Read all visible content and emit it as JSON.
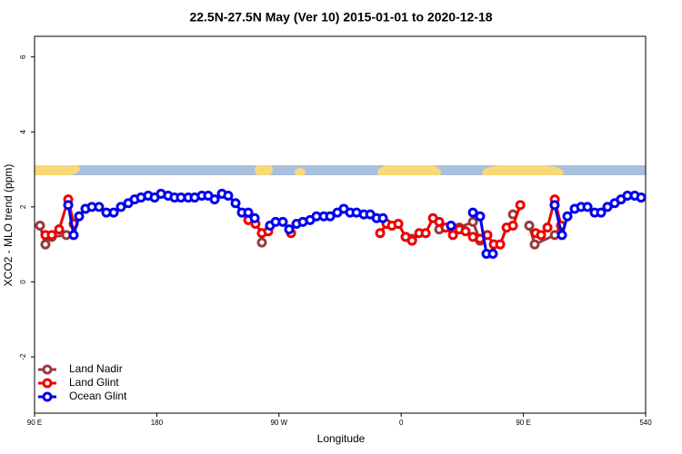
{
  "chart_data": {
    "type": "line",
    "title": "22.5N-27.5N May (Ver 10)   2015-01-01 to 2020-12-18",
    "x_label": "Longitude",
    "y_label": "XCO2 - MLO trend (ppm)",
    "xlim": [
      90,
      540
    ],
    "ylim": [
      -3.5,
      6.55
    ],
    "xticks": [
      {
        "value": 90,
        "label": "90 E"
      },
      180,
      {
        "value": 270,
        "label": "90 W"
      },
      {
        "value": 360,
        "label": "0"
      },
      {
        "value": 450,
        "label": "90 E"
      },
      540
    ],
    "yticks": [
      -2,
      0,
      2,
      4,
      6
    ],
    "legend": "bottom-left",
    "series": [
      {
        "name": "Land Nadir",
        "color": "#983b3b",
        "x": [
          94,
          98,
          102.7,
          113.4,
          null,
          257.4,
          null,
          363.3,
          368,
          null,
          388,
          402.8,
          412.8,
          418.1,
          null,
          442.3,
          null,
          454.3,
          458.3,
          473.1,
          477.7
        ],
        "values": [
          1.5,
          1.0,
          1.2,
          1.25,
          null,
          1.05,
          null,
          1.2,
          1.15,
          null,
          1.4,
          1.45,
          1.6,
          1.1,
          null,
          1.8,
          null,
          1.5,
          1.0,
          1.25,
          1.5
        ]
      },
      {
        "name": "Land Glint",
        "color": "#ee0000",
        "x": [
          98,
          102.7,
          108.1,
          114.8,
          118.8,
          null,
          247.4,
          252.7,
          257.4,
          262.1,
          null,
          278.9,
          null,
          344.5,
          349.2,
          353.2,
          357.9,
          363.3,
          368,
          373.3,
          378,
          383.4,
          388,
          392.7,
          398.1,
          402.8,
          407.4,
          412.8,
          418.1,
          423.5,
          428.2,
          432.9,
          437.6,
          442.3,
          447.7,
          null,
          459,
          463,
          467.7,
          473.1,
          477.7
        ],
        "values": [
          1.25,
          1.25,
          1.4,
          2.2,
          1.55,
          null,
          1.65,
          1.55,
          1.3,
          1.35,
          null,
          1.3,
          null,
          1.3,
          1.55,
          1.5,
          1.55,
          1.2,
          1.1,
          1.3,
          1.3,
          1.7,
          1.6,
          1.45,
          1.25,
          1.4,
          1.35,
          1.2,
          1.15,
          1.25,
          1.0,
          1.0,
          1.45,
          1.5,
          2.05,
          null,
          1.3,
          1.25,
          1.45,
          2.2,
          1.5
        ]
      },
      {
        "name": "Ocean Glint",
        "color": "#0000ee",
        "x": [
          114.8,
          118.8,
          122.8,
          127.5,
          132.2,
          137.5,
          142.9,
          148.3,
          153.6,
          159,
          163.7,
          168.4,
          173.7,
          178.4,
          183.1,
          188.4,
          193.1,
          197.8,
          203.2,
          207.9,
          213.2,
          217.9,
          222.6,
          228,
          232.6,
          238,
          242.7,
          247.4,
          252.1,
          null,
          263.4,
          267.5,
          272.8,
          277.5,
          282.9,
          287.6,
          292.9,
          297.6,
          303,
          307.7,
          313,
          317.7,
          322.4,
          327.1,
          332.5,
          337.2,
          341.9,
          346.5,
          null,
          396.7,
          null,
          412.8,
          418.1,
          422.8,
          427.5,
          null,
          473,
          478.4,
          482.4,
          487.8,
          492.5,
          497.2,
          502.5,
          507.2,
          511.9,
          517.2,
          521.9,
          526.6,
          532,
          536.7
        ],
        "values": [
          2.05,
          1.25,
          1.75,
          1.95,
          2.0,
          2.0,
          1.85,
          1.85,
          2.0,
          2.1,
          2.2,
          2.25,
          2.3,
          2.25,
          2.35,
          2.3,
          2.25,
          2.25,
          2.25,
          2.25,
          2.3,
          2.3,
          2.2,
          2.35,
          2.3,
          2.1,
          1.85,
          1.85,
          1.7,
          null,
          1.5,
          1.6,
          1.6,
          1.4,
          1.55,
          1.6,
          1.65,
          1.75,
          1.75,
          1.75,
          1.85,
          1.95,
          1.85,
          1.85,
          1.8,
          1.8,
          1.7,
          1.7,
          null,
          1.5,
          null,
          1.85,
          1.75,
          0.75,
          0.75,
          null,
          2.05,
          1.25,
          1.75,
          1.95,
          2.0,
          2.0,
          1.85,
          1.85,
          2.0,
          2.1,
          2.2,
          2.3,
          2.3,
          2.25
        ]
      }
    ]
  }
}
